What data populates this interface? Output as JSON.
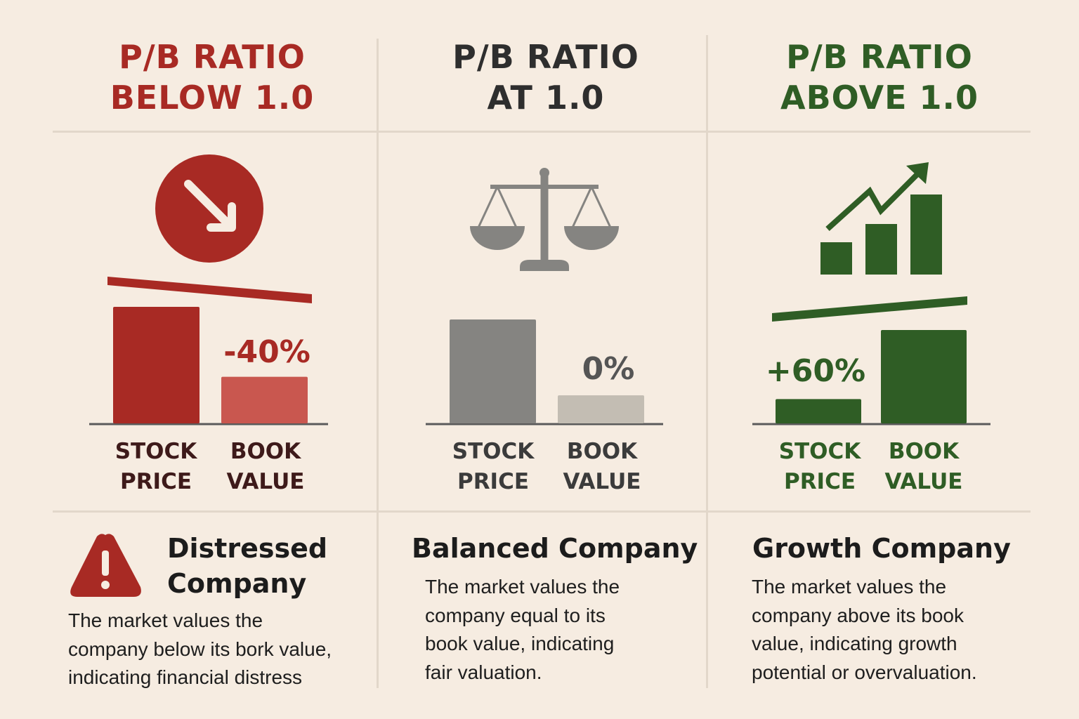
{
  "colors": {
    "background": "#f6ece1",
    "red": "#a82a24",
    "red_light": "#c9574f",
    "gray": "#858481",
    "gray_light": "#c3bdb3",
    "green": "#2f5d25",
    "label_dark": "#3e1a1a"
  },
  "columns": [
    {
      "title_lines": [
        "P/B RATIO",
        "BELOW 1.0"
      ],
      "icon": "down-arrow-circle-icon",
      "heading_lines": [
        "Distressed",
        "Company"
      ],
      "warning_icon": "warning-triangle-icon",
      "description_lines": [
        "The market values the",
        "company below its bork value,",
        "indicating financial distress"
      ]
    },
    {
      "title_lines": [
        "P/B RATIO",
        "AT 1.0"
      ],
      "icon": "balance-scale-icon",
      "heading_lines": [
        "Balanced Company"
      ],
      "description_lines": [
        "The market values the",
        "company equal to its",
        "book value, indicating",
        "fair valuation."
      ]
    },
    {
      "title_lines": [
        "P/B RATIO",
        "ABOVE 1.0"
      ],
      "icon": "growth-chart-icon",
      "heading_lines": [
        "Growth Company"
      ],
      "description_lines": [
        "The market values the",
        "company above its book",
        "value, indicating growth",
        "potential or overvaluation."
      ]
    }
  ],
  "chart_data": [
    {
      "type": "bar",
      "title": "P/B RATIO BELOW 1.0",
      "categories": [
        "STOCK PRICE",
        "BOOK VALUE"
      ],
      "category_lines": [
        [
          "STOCK",
          "PRICE"
        ],
        [
          "BOOK",
          "VALUE"
        ]
      ],
      "values": [
        100,
        40
      ],
      "annotation": "-40%",
      "trend": "down",
      "ylim": [
        0,
        100
      ]
    },
    {
      "type": "bar",
      "title": "P/B RATIO AT 1.0",
      "categories": [
        "STOCK PRICE",
        "BOOK VALUE"
      ],
      "category_lines": [
        [
          "STOCK",
          "PRICE"
        ],
        [
          "BOOK",
          "VALUE"
        ]
      ],
      "values": [
        100,
        27
      ],
      "annotation": "0%",
      "trend": "flat",
      "ylim": [
        0,
        100
      ]
    },
    {
      "type": "bar",
      "title": "P/B RATIO ABOVE 1.0",
      "categories": [
        "STOCK PRICE",
        "BOOK VALUE"
      ],
      "category_lines": [
        [
          "STOCK",
          "PRICE"
        ],
        [
          "BOOK",
          "VALUE"
        ]
      ],
      "values": [
        26,
        100
      ],
      "annotation": "+60%",
      "trend": "up",
      "ylim": [
        0,
        100
      ]
    }
  ]
}
